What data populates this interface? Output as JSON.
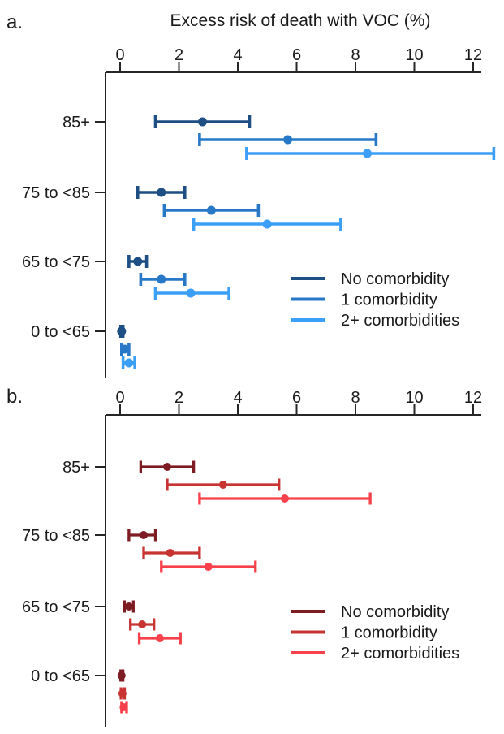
{
  "chart_data": [
    {
      "type": "errorbar",
      "panel_label": "a.",
      "title": "Excess risk of death with VOC (%)",
      "xlabel": "Excess risk of death with VOC (%)",
      "x_ticks": [
        0,
        2,
        4,
        6,
        8,
        10,
        12
      ],
      "xlim": [
        0,
        12.8
      ],
      "grid": false,
      "legend_position": "inside-right",
      "axis_color": "#262626",
      "categories": [
        "85+",
        "75 to <85",
        "65 to <75",
        "0 to <65"
      ],
      "series": [
        {
          "name": "No comorbidity",
          "color": "#1d4f84",
          "values": [
            2.8,
            1.4,
            0.6,
            0.05
          ],
          "ci_low": [
            1.2,
            0.6,
            0.3,
            0.02
          ],
          "ci_high": [
            4.4,
            2.2,
            0.9,
            0.1
          ]
        },
        {
          "name": "1 comorbidity",
          "color": "#2878c8",
          "values": [
            5.7,
            3.1,
            1.4,
            0.15
          ],
          "ci_low": [
            2.7,
            1.5,
            0.7,
            0.05
          ],
          "ci_high": [
            8.7,
            4.7,
            2.2,
            0.3
          ]
        },
        {
          "name": "2+ comorbidities",
          "color": "#3c9ff7",
          "values": [
            8.4,
            5.0,
            2.4,
            0.3
          ],
          "ci_low": [
            4.3,
            2.5,
            1.2,
            0.1
          ],
          "ci_high": [
            12.7,
            7.5,
            3.7,
            0.5
          ]
        }
      ]
    },
    {
      "type": "errorbar",
      "panel_label": "b.",
      "title": "",
      "x_ticks": [
        0,
        2,
        4,
        6,
        8,
        10,
        12
      ],
      "xlim": [
        0,
        12.8
      ],
      "grid": false,
      "legend_position": "inside-right",
      "axis_color": "#262626",
      "categories": [
        "85+",
        "75 to <85",
        "65 to <75",
        "0 to <65"
      ],
      "series": [
        {
          "name": "No comorbidity",
          "color": "#7e1c24",
          "values": [
            1.6,
            0.8,
            0.3,
            0.05
          ],
          "ci_low": [
            0.7,
            0.3,
            0.15,
            0.02
          ],
          "ci_high": [
            2.5,
            1.2,
            0.45,
            0.1
          ]
        },
        {
          "name": "1 comorbidity",
          "color": "#c83432",
          "values": [
            3.5,
            1.7,
            0.75,
            0.08
          ],
          "ci_low": [
            1.6,
            0.8,
            0.35,
            0.03
          ],
          "ci_high": [
            5.4,
            2.7,
            1.15,
            0.15
          ]
        },
        {
          "name": "2+ comorbidities",
          "color": "#f9414b",
          "values": [
            5.6,
            3.0,
            1.35,
            0.12
          ],
          "ci_low": [
            2.7,
            1.4,
            0.65,
            0.05
          ],
          "ci_high": [
            8.5,
            4.6,
            2.05,
            0.22
          ]
        }
      ]
    }
  ]
}
